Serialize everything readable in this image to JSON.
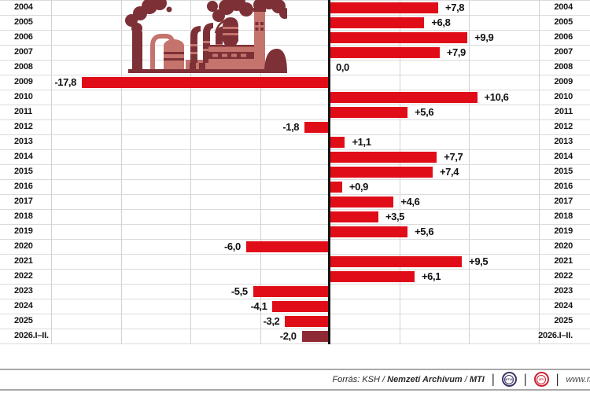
{
  "chart_data": {
    "type": "bar",
    "orientation": "horizontal-diverging",
    "title": "",
    "xlabel": "",
    "ylabel": "",
    "categories": [
      "2004",
      "2005",
      "2006",
      "2007",
      "2008",
      "2009",
      "2010",
      "2011",
      "2012",
      "2013",
      "2014",
      "2015",
      "2016",
      "2017",
      "2018",
      "2019",
      "2020",
      "2021",
      "2022",
      "2023",
      "2024",
      "2025",
      "2026.I–II."
    ],
    "values": [
      7.8,
      6.8,
      9.9,
      7.9,
      0.0,
      -17.8,
      10.6,
      5.6,
      -1.8,
      1.1,
      7.7,
      7.4,
      0.9,
      4.6,
      3.5,
      5.6,
      -6.0,
      9.5,
      6.1,
      -5.5,
      -4.1,
      -3.2,
      -2.0
    ],
    "labels": [
      "+7,8",
      "+6,8",
      "+9,9",
      "+7,9",
      "0,0",
      "-17,8",
      "+10,6",
      "+5,6",
      "-1,8",
      "+1,1",
      "+7,7",
      "+7,4",
      "+0,9",
      "+4,6",
      "+3,5",
      "+5,6",
      "-6,0",
      "+9,5",
      "+6,1",
      "-5,5",
      "-4,1",
      "-3,2",
      "-2,0"
    ],
    "xlim": [
      -23.7,
      18.7
    ],
    "grid_step": 5,
    "grid": true,
    "bar_color": "#e00d18",
    "final_bar_color": "#8e2a33",
    "year_labels_position": "both-sides"
  },
  "colors": {
    "bar_red": "#e00d18",
    "final_bar_maroon": "#8e2a33",
    "axis_black": "#151515",
    "gridline_gray": "#d7d7d7",
    "factory_dark": "#7d3136",
    "factory_light": "#c4746d",
    "mtva_logo_navy": "#3c3566",
    "mti_logo_red": "#cd2130",
    "footer_rule_gray": "#a9a9a9"
  },
  "footer": {
    "source_prefix": "Forrás: KSH /",
    "source_archive": "Nemzeti Archívum",
    "source_slash": "/",
    "source_agency": "MTI",
    "separator": "|",
    "mtva_logo_text": "MTVA",
    "mti_logo_text": "MTI",
    "url_text": "www.m"
  }
}
